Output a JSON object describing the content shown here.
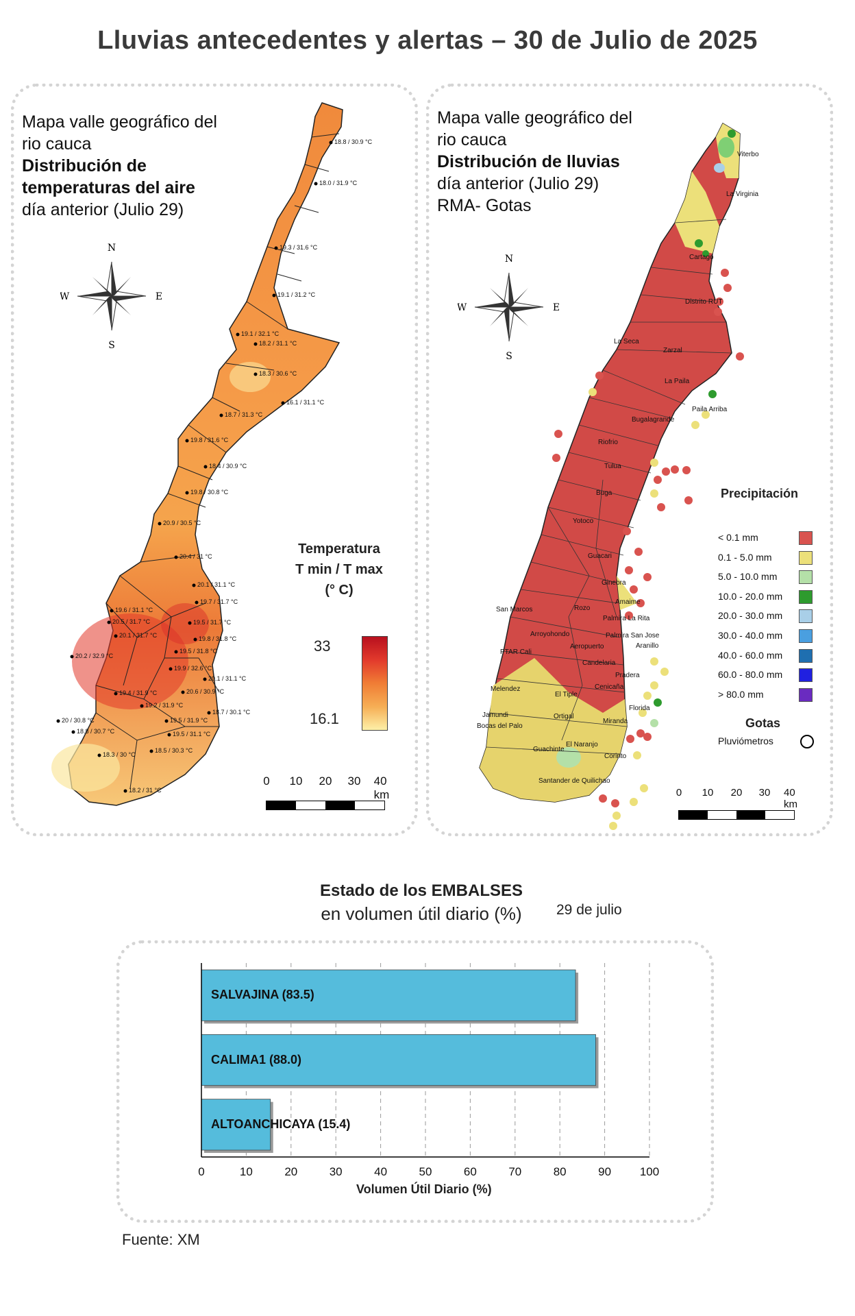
{
  "title": "Lluvias antecedentes y alertas – 30 de Julio de 2025",
  "temp_map": {
    "title_lines": [
      "Mapa valle geográfico del",
      "rio cauca",
      "Distribución de",
      "temperaturas del aire"
    ],
    "subtitle": "día anterior (Julio 29)",
    "compass": {
      "n": "N",
      "s": "S",
      "e": "E",
      "w": "W"
    },
    "legend": {
      "title_line1": "Temperatura",
      "title_line2": "T min / T max",
      "title_line3": "(° C)",
      "max": "33",
      "min": "16.1"
    },
    "scale": {
      "ticks": [
        "0",
        "10",
        "20",
        "30",
        "40 km"
      ]
    },
    "stations": [
      "18.8 / 30.9 °C",
      "18.0 / 31.9 °C",
      "19.3 / 31.6 °C",
      "19.1 / 31.2 °C",
      "19.1 / 32.1 °C",
      "18.2 / 31.1 °C",
      "18.3 / 30.6 °C",
      "16.1 / 31.1 °C",
      "18.7 / 31.3 °C",
      "19.8 / 31.6 °C",
      "18.4 / 30.9 °C",
      "19.8 / 30.8 °C",
      "20.9 / 30.5 °C",
      "20.4 / 31 °C",
      "20.1 / 31.1 °C",
      "19.6 / 31.1 °C",
      "19.7 / 31.7 °C",
      "20.5 / 31.7 °C",
      "19.5 / 31.7 °C",
      "20.1 / 31.7 °C",
      "19.8 / 31.8 °C",
      "20.2 / 32.9 °C",
      "19.5 / 31.8 °C",
      "19.9 / 32.6 °C",
      "20.1 / 31.1 °C",
      "19.4 / 31.9 °C",
      "20.6 / 30.9 °C",
      "19.2 / 31.9 °C",
      "18.7 / 30.1 °C",
      "20 / 30.8 °C",
      "18.8 / 30.7 °C",
      "19.5 / 31.9 °C",
      "19.5 / 31.1 °C",
      "18.3 / 30 °C",
      "18.5 / 30.3 °C",
      "18.2 / 31 °C"
    ]
  },
  "rain_map": {
    "title_lines": [
      "Mapa valle geográfico del",
      "rio cauca"
    ],
    "bold_line": "Distribución de lluvias",
    "subtitle_lines": [
      "día anterior (Julio 29)",
      "RMA- Gotas"
    ],
    "compass": {
      "n": "N",
      "s": "S",
      "e": "E",
      "w": "W"
    },
    "places": [
      "Viterbo",
      "La Virginia",
      "Cartago",
      "Distrito RUT",
      "La Seca",
      "Zarzal",
      "La Paila",
      "Paila Arriba",
      "Bugalagrande",
      "Riofrio",
      "Tulua",
      "Buga",
      "Yotoco",
      "Guacari",
      "Ginebra",
      "Amaime",
      "San Marcos",
      "Rozo",
      "Palmira La Rita",
      "Arroyohondo",
      "Palmira San Jose",
      "Aeropuerto",
      "Aranillo",
      "PTAR Cali",
      "Candelaria",
      "Pradera",
      "Cenicaña",
      "Melendez",
      "El Tiple",
      "Florida",
      "Jamundi",
      "Bocas del Palo",
      "Ortigal",
      "Miranda",
      "Guachinte",
      "El Naranjo",
      "Corinto",
      "Santander de Quilichao"
    ],
    "legend": {
      "title": "Precipitación",
      "items": [
        {
          "label": "< 0.1 mm",
          "color": "#d9534f"
        },
        {
          "label": "0.1 - 5.0 mm",
          "color": "#ece07a"
        },
        {
          "label": "5.0 - 10.0 mm",
          "color": "#b4e0a8"
        },
        {
          "label": "10.0 - 20.0 mm",
          "color": "#2e9b2e"
        },
        {
          "label": "20.0 - 30.0 mm",
          "color": "#a9cfe8"
        },
        {
          "label": "30.0 - 40.0 mm",
          "color": "#4a9fe0"
        },
        {
          "label": "40.0 - 60.0 mm",
          "color": "#1f6fb0"
        },
        {
          "label": "60.0 - 80.0 mm",
          "color": "#2020e0"
        },
        {
          "label": "> 80.0 mm",
          "color": "#6a2bc0"
        }
      ],
      "gotas_title": "Gotas",
      "gotas_item": "Pluviómetros"
    },
    "scale": {
      "ticks": [
        "0",
        "10",
        "20",
        "30",
        "40 km"
      ]
    }
  },
  "reservoirs": {
    "title": "Estado de los EMBALSES",
    "subtitle": "en volumen útil diario (%)",
    "date": "29 de julio",
    "source": "Fuente: XM"
  },
  "chart_data": {
    "type": "bar",
    "orientation": "horizontal",
    "categories": [
      "SALVAJINA (83.5)",
      "CALIMA1 (88.0)",
      "ALTOANCHICAYA (15.4)"
    ],
    "values": [
      83.5,
      88.0,
      15.4
    ],
    "xlabel": "Volumen Útil Diario (%)",
    "xlim": [
      0,
      100
    ],
    "xticks": [
      "0",
      "10",
      "20",
      "30",
      "40",
      "50",
      "60",
      "70",
      "80",
      "90",
      "100"
    ],
    "grid": true,
    "bar_color": "#55bcdc"
  }
}
